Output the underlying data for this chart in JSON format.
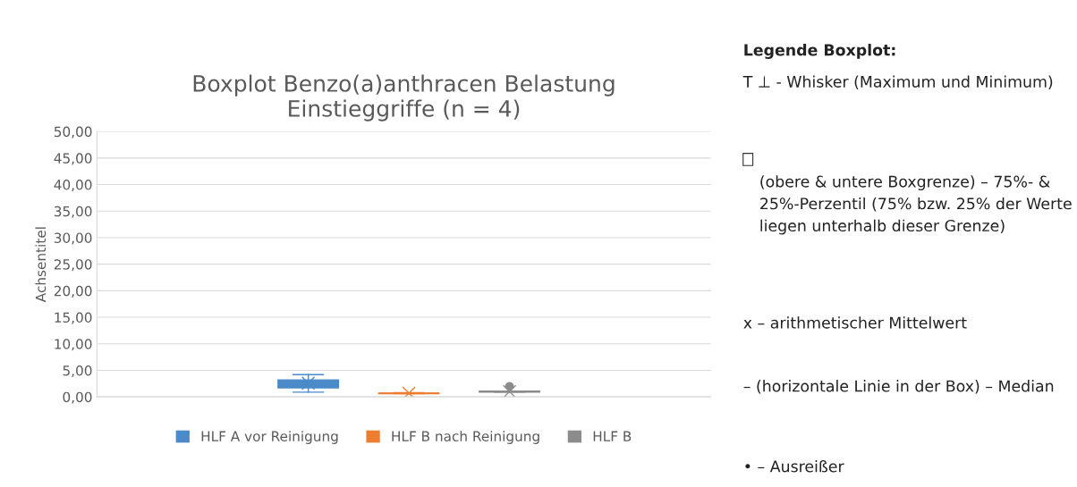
{
  "chart_data": {
    "type": "box",
    "title": "Boxplot Benzo(a)anthracen Belastung\nEinstieggriffe (n = 4)",
    "ylabel": "Achsentitel",
    "categories": [
      null
    ],
    "series": [
      {
        "name": "HLF A vor Reinigung",
        "color": "#4a8ac8",
        "boxes": [
          {
            "low": 0.9,
            "q1": 1.7,
            "median": 2.5,
            "q3": 3.2,
            "high": 4.2,
            "mean": 2.6
          }
        ]
      },
      {
        "name": "HLF B nach Reinigung",
        "color": "#ed7d31",
        "boxes": [
          {
            "low": 0.6,
            "q1": 0.6,
            "median": 0.7,
            "q3": 0.7,
            "high": 0.8,
            "mean": 0.7
          }
        ]
      },
      {
        "name": "HLF B",
        "color": "#8c8c8c",
        "boxes": [
          {
            "low": 0.9,
            "q1": 0.9,
            "median": 1.0,
            "q3": 1.1,
            "high": 1.1,
            "mean": 1.0,
            "outliers": [
              2.0
            ]
          }
        ]
      }
    ],
    "ylim": [
      0,
      50
    ],
    "yticks": [
      {
        "value": 0,
        "label": "0,00"
      },
      {
        "value": 5,
        "label": "5,00"
      },
      {
        "value": 10,
        "label": "10,00"
      },
      {
        "value": 15,
        "label": "15,00"
      },
      {
        "value": 20,
        "label": "20,00"
      },
      {
        "value": 25,
        "label": "25,00"
      },
      {
        "value": 30,
        "label": "30,00"
      },
      {
        "value": 35,
        "label": "35,00"
      },
      {
        "value": 40,
        "label": "40,00"
      },
      {
        "value": 45,
        "label": "45,00"
      },
      {
        "value": 50,
        "label": "50,00"
      }
    ],
    "grid": "y",
    "legend": "bottom",
    "annotations": [
      "Legende Boxplot:",
      "T ⊥ - Whisker (Maximum und Minimum)",
      "(obere & untere Boxgrenze) – 75%- & 25%-Perzentil (75% bzw. 25% der Werte liegen unterhalb dieser Grenze)",
      "x – arithmetischer Mittelwert",
      "– (horizontale Linie in der Box) – Median",
      "• – Ausreißer"
    ]
  }
}
